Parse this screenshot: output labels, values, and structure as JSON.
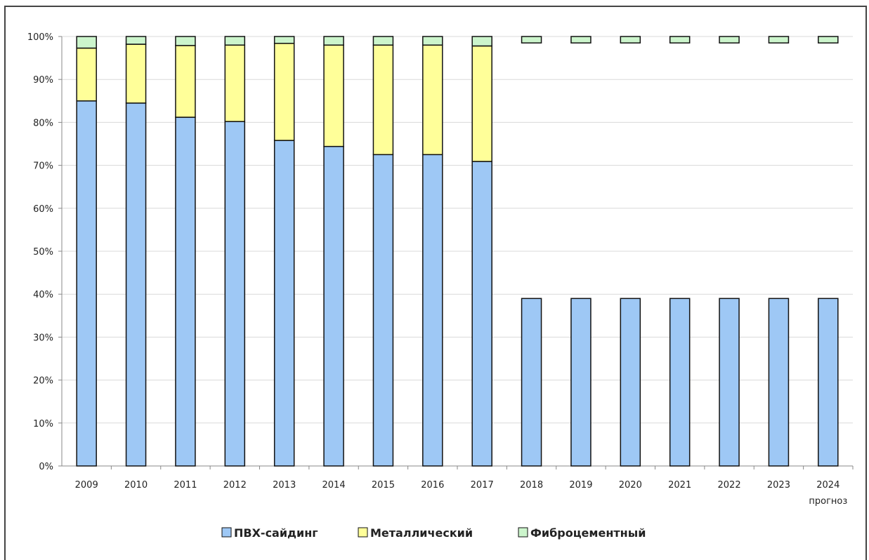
{
  "chart_data": {
    "type": "bar",
    "stacked": true,
    "percent": true,
    "categories": [
      "2009",
      "2010",
      "2011",
      "2012",
      "2013",
      "2014",
      "2015",
      "2016",
      "2017",
      "2018",
      "2019",
      "2020",
      "2021",
      "2022",
      "2023",
      "2024"
    ],
    "forecast_note": "прогноз",
    "series": [
      {
        "name": "ПВХ-сайдинг",
        "color": "#9ec8f5",
        "values": [
          85,
          84.5,
          81.2,
          80.2,
          75.8,
          74.4,
          72.5,
          72.5,
          70.9,
          39,
          39,
          39,
          39,
          39,
          39,
          39
        ]
      },
      {
        "name": "Металлический",
        "color": "#ffff99",
        "values": [
          12.3,
          13.7,
          16.7,
          17.8,
          22.6,
          23.6,
          25.5,
          25.5,
          26.9,
          null,
          null,
          null,
          null,
          null,
          null,
          null
        ]
      },
      {
        "name": "Фиброцементный",
        "color": "#ccf5cc",
        "values": [
          2.7,
          1.8,
          2.1,
          2.0,
          1.6,
          2.0,
          2.0,
          2.0,
          2.2,
          1.5,
          1.5,
          1.5,
          1.5,
          1.5,
          1.5,
          1.5
        ]
      }
    ],
    "ylim": [
      0,
      100
    ],
    "yticks": [
      "0%",
      "10%",
      "20%",
      "30%",
      "40%",
      "50%",
      "60%",
      "70%",
      "80%",
      "90%",
      "100%"
    ],
    "grid": true,
    "legend": "bottom"
  }
}
